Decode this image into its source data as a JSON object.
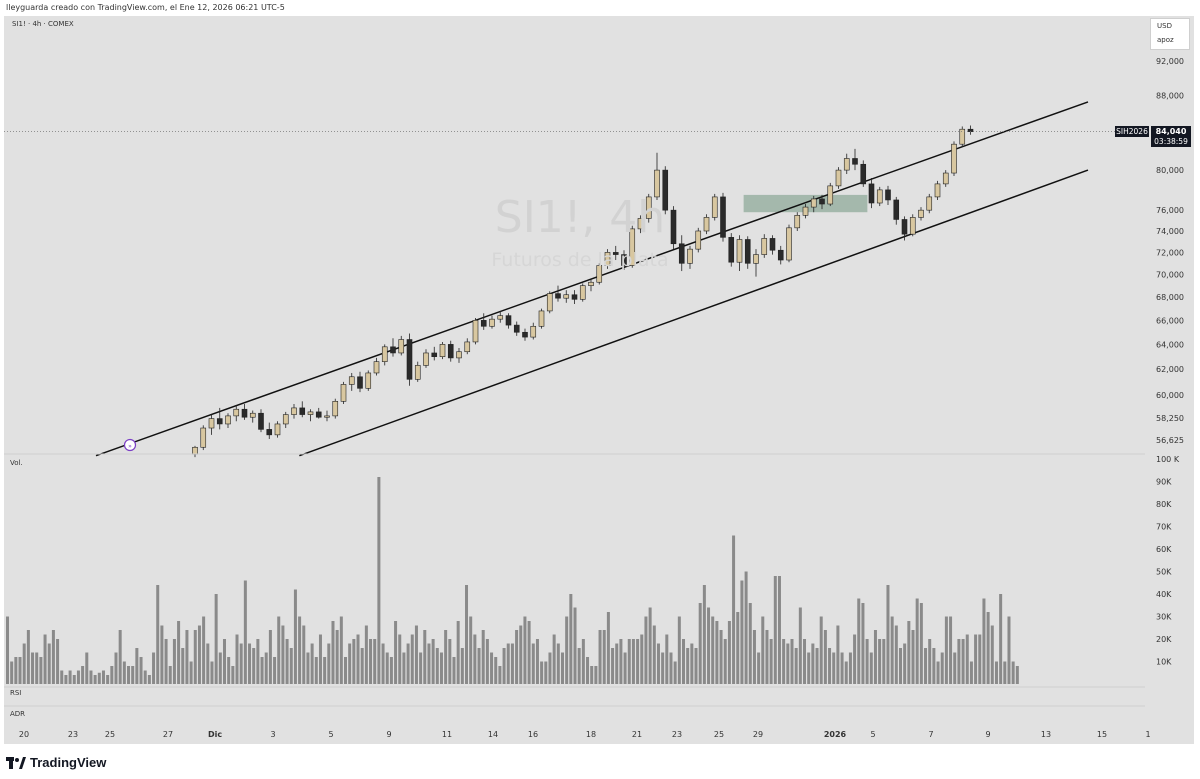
{
  "header": {
    "caption": "lleyguarda creado con TradingView.com, el Ene 12, 2026 06:21 UTC-5",
    "symbol_line": "SI1! · 4h · COMEX"
  },
  "watermark": {
    "title": "SI1!, 4h",
    "subtitle": "Futuros de la plata"
  },
  "currency_box": {
    "currency": "USD",
    "mode": "apoz"
  },
  "price_tag": {
    "symbol": "SIH2026",
    "price": "84,040",
    "countdown": "03:38:59"
  },
  "panes": {
    "volume_label": "Vol.",
    "rsi_label": "RSI",
    "adr_label": "ADR"
  },
  "footer": {
    "brand": "TradingView"
  },
  "colors": {
    "up": "#d8c7a0",
    "down": "#2a2a2a",
    "volume": "#8a8a8a",
    "zone": "#8fa99a",
    "channel": "#111111",
    "background": "#e1e1e1"
  },
  "chart_data": {
    "type": "candlestick",
    "price_axis": {
      "labels": [
        "92,000",
        "88,000",
        "84,000",
        "80,000",
        "76,000",
        "74,000",
        "72,000",
        "70,000",
        "68,000",
        "66,000",
        "64,000",
        "62,000",
        "60,000",
        "58,250",
        "56,625"
      ],
      "values": [
        92000,
        88000,
        84000,
        80000,
        76000,
        74000,
        72000,
        70000,
        68000,
        66000,
        64000,
        62000,
        60000,
        58250,
        56625
      ],
      "scale": "log"
    },
    "volume_axis": {
      "labels": [
        "100 K",
        "90K",
        "80K",
        "70K",
        "60K",
        "50K",
        "40K",
        "30K",
        "20K",
        "10K"
      ],
      "values": [
        100,
        90,
        80,
        70,
        60,
        50,
        40,
        30,
        20,
        10
      ]
    },
    "time_axis": {
      "labels": [
        "20",
        "23",
        "25",
        "27",
        "Dic",
        "3",
        "5",
        "9",
        "11",
        "14",
        "16",
        "18",
        "21",
        "23",
        "25",
        "29",
        "2026",
        "5",
        "7",
        "9",
        "13",
        "15",
        "1"
      ],
      "bold": [
        "Dic",
        "2026"
      ]
    },
    "current_price": 84040,
    "channel": {
      "upper": {
        "start": {
          "t": 0.0,
          "price": 55500
        },
        "end": {
          "t": 1.0,
          "price": 87300
        }
      },
      "lower": {
        "start": {
          "t": 0.205,
          "price": 55500
        },
        "end": {
          "t": 1.0,
          "price": 80000
        }
      }
    },
    "zone": {
      "t_start": 0.665,
      "t_end": 0.815,
      "price_low": 75800,
      "price_high": 77500
    },
    "candles": [
      {
        "t": 0.0,
        "o": 55600,
        "h": 56200,
        "l": 55400,
        "c": 56100
      },
      {
        "t": 0.01,
        "o": 56100,
        "h": 57700,
        "l": 55900,
        "c": 57500
      },
      {
        "t": 0.02,
        "o": 57500,
        "h": 58500,
        "l": 57000,
        "c": 58200
      },
      {
        "t": 0.03,
        "o": 58200,
        "h": 59000,
        "l": 57400,
        "c": 57800
      },
      {
        "t": 0.04,
        "o": 57800,
        "h": 58600,
        "l": 57500,
        "c": 58400
      },
      {
        "t": 0.05,
        "o": 58400,
        "h": 59200,
        "l": 58000,
        "c": 58900
      },
      {
        "t": 0.06,
        "o": 58900,
        "h": 59300,
        "l": 58100,
        "c": 58300
      },
      {
        "t": 0.07,
        "o": 58300,
        "h": 58800,
        "l": 57900,
        "c": 58600
      },
      {
        "t": 0.08,
        "o": 58600,
        "h": 58900,
        "l": 57200,
        "c": 57400
      },
      {
        "t": 0.09,
        "o": 57400,
        "h": 57900,
        "l": 56700,
        "c": 57000
      },
      {
        "t": 0.1,
        "o": 57000,
        "h": 58000,
        "l": 56800,
        "c": 57800
      },
      {
        "t": 0.11,
        "o": 57800,
        "h": 58700,
        "l": 57500,
        "c": 58500
      },
      {
        "t": 0.12,
        "o": 58500,
        "h": 59300,
        "l": 58200,
        "c": 59000
      },
      {
        "t": 0.13,
        "o": 59000,
        "h": 59500,
        "l": 58300,
        "c": 58500
      },
      {
        "t": 0.14,
        "o": 58500,
        "h": 58900,
        "l": 58000,
        "c": 58700
      },
      {
        "t": 0.15,
        "o": 58700,
        "h": 59000,
        "l": 58200,
        "c": 58300
      },
      {
        "t": 0.16,
        "o": 58300,
        "h": 58800,
        "l": 58000,
        "c": 58400
      },
      {
        "t": 0.17,
        "o": 58400,
        "h": 59700,
        "l": 58200,
        "c": 59500
      },
      {
        "t": 0.18,
        "o": 59500,
        "h": 61000,
        "l": 59300,
        "c": 60800
      },
      {
        "t": 0.19,
        "o": 60800,
        "h": 61700,
        "l": 60300,
        "c": 61400
      },
      {
        "t": 0.2,
        "o": 61400,
        "h": 61800,
        "l": 60200,
        "c": 60500
      },
      {
        "t": 0.21,
        "o": 60500,
        "h": 61900,
        "l": 60300,
        "c": 61700
      },
      {
        "t": 0.22,
        "o": 61700,
        "h": 62900,
        "l": 61500,
        "c": 62600
      },
      {
        "t": 0.23,
        "o": 62600,
        "h": 64000,
        "l": 62300,
        "c": 63800
      },
      {
        "t": 0.24,
        "o": 63800,
        "h": 64500,
        "l": 63000,
        "c": 63300
      },
      {
        "t": 0.25,
        "o": 63300,
        "h": 64700,
        "l": 63100,
        "c": 64400
      },
      {
        "t": 0.26,
        "o": 64400,
        "h": 64900,
        "l": 60700,
        "c": 61200
      },
      {
        "t": 0.27,
        "o": 61200,
        "h": 62600,
        "l": 61000,
        "c": 62300
      },
      {
        "t": 0.28,
        "o": 62300,
        "h": 63600,
        "l": 62100,
        "c": 63300
      },
      {
        "t": 0.29,
        "o": 63300,
        "h": 63800,
        "l": 62700,
        "c": 63000
      },
      {
        "t": 0.3,
        "o": 63000,
        "h": 64200,
        "l": 62800,
        "c": 64000
      },
      {
        "t": 0.31,
        "o": 64000,
        "h": 64300,
        "l": 62600,
        "c": 62900
      },
      {
        "t": 0.32,
        "o": 62900,
        "h": 63700,
        "l": 62500,
        "c": 63400
      },
      {
        "t": 0.33,
        "o": 63400,
        "h": 64500,
        "l": 63200,
        "c": 64200
      },
      {
        "t": 0.34,
        "o": 64200,
        "h": 66200,
        "l": 64000,
        "c": 66000
      },
      {
        "t": 0.35,
        "o": 66000,
        "h": 66600,
        "l": 65200,
        "c": 65500
      },
      {
        "t": 0.36,
        "o": 65500,
        "h": 66400,
        "l": 65300,
        "c": 66100
      },
      {
        "t": 0.37,
        "o": 66100,
        "h": 66800,
        "l": 65800,
        "c": 66400
      },
      {
        "t": 0.38,
        "o": 66400,
        "h": 66600,
        "l": 65300,
        "c": 65600
      },
      {
        "t": 0.39,
        "o": 65600,
        "h": 65900,
        "l": 64700,
        "c": 65000
      },
      {
        "t": 0.4,
        "o": 65000,
        "h": 65300,
        "l": 64300,
        "c": 64600
      },
      {
        "t": 0.41,
        "o": 64600,
        "h": 65800,
        "l": 64400,
        "c": 65500
      },
      {
        "t": 0.42,
        "o": 65500,
        "h": 67000,
        "l": 65300,
        "c": 66800
      },
      {
        "t": 0.43,
        "o": 66800,
        "h": 68500,
        "l": 66600,
        "c": 68300
      },
      {
        "t": 0.44,
        "o": 68300,
        "h": 69000,
        "l": 67600,
        "c": 67900
      },
      {
        "t": 0.45,
        "o": 67900,
        "h": 68600,
        "l": 67500,
        "c": 68200
      },
      {
        "t": 0.46,
        "o": 68200,
        "h": 68600,
        "l": 67400,
        "c": 67800
      },
      {
        "t": 0.47,
        "o": 67800,
        "h": 69200,
        "l": 67600,
        "c": 69000
      },
      {
        "t": 0.48,
        "o": 69000,
        "h": 69600,
        "l": 68500,
        "c": 69300
      },
      {
        "t": 0.49,
        "o": 69300,
        "h": 71000,
        "l": 69100,
        "c": 70800
      },
      {
        "t": 0.5,
        "o": 70800,
        "h": 72300,
        "l": 70500,
        "c": 72000
      },
      {
        "t": 0.51,
        "o": 72000,
        "h": 72600,
        "l": 71300,
        "c": 71800
      },
      {
        "t": 0.52,
        "o": 71800,
        "h": 72200,
        "l": 70400,
        "c": 70800
      },
      {
        "t": 0.53,
        "o": 70800,
        "h": 74500,
        "l": 70600,
        "c": 74200
      },
      {
        "t": 0.54,
        "o": 74200,
        "h": 75500,
        "l": 73800,
        "c": 75200
      },
      {
        "t": 0.55,
        "o": 75200,
        "h": 77600,
        "l": 74800,
        "c": 77300
      },
      {
        "t": 0.56,
        "o": 77300,
        "h": 81800,
        "l": 77000,
        "c": 80000
      },
      {
        "t": 0.57,
        "o": 80000,
        "h": 80400,
        "l": 75600,
        "c": 76000
      },
      {
        "t": 0.58,
        "o": 76000,
        "h": 76400,
        "l": 72300,
        "c": 72800
      },
      {
        "t": 0.59,
        "o": 72800,
        "h": 73600,
        "l": 70300,
        "c": 71000
      },
      {
        "t": 0.6,
        "o": 71000,
        "h": 72600,
        "l": 70500,
        "c": 72300
      },
      {
        "t": 0.61,
        "o": 72300,
        "h": 74300,
        "l": 72000,
        "c": 74000
      },
      {
        "t": 0.62,
        "o": 74000,
        "h": 75600,
        "l": 73700,
        "c": 75300
      },
      {
        "t": 0.63,
        "o": 75300,
        "h": 77600,
        "l": 75000,
        "c": 77300
      },
      {
        "t": 0.64,
        "o": 77300,
        "h": 77700,
        "l": 73000,
        "c": 73400
      },
      {
        "t": 0.65,
        "o": 73400,
        "h": 73800,
        "l": 70700,
        "c": 71100
      },
      {
        "t": 0.66,
        "o": 71100,
        "h": 73600,
        "l": 70300,
        "c": 73200
      },
      {
        "t": 0.67,
        "o": 73200,
        "h": 73500,
        "l": 70500,
        "c": 71000
      },
      {
        "t": 0.68,
        "o": 71000,
        "h": 72300,
        "l": 69800,
        "c": 71800
      },
      {
        "t": 0.69,
        "o": 71800,
        "h": 73700,
        "l": 71500,
        "c": 73300
      },
      {
        "t": 0.7,
        "o": 73300,
        "h": 73600,
        "l": 71800,
        "c": 72200
      },
      {
        "t": 0.71,
        "o": 72200,
        "h": 72600,
        "l": 70900,
        "c": 71300
      },
      {
        "t": 0.72,
        "o": 71300,
        "h": 74600,
        "l": 71100,
        "c": 74300
      },
      {
        "t": 0.73,
        "o": 74300,
        "h": 75800,
        "l": 74000,
        "c": 75500
      },
      {
        "t": 0.74,
        "o": 75500,
        "h": 76600,
        "l": 75200,
        "c": 76300
      },
      {
        "t": 0.75,
        "o": 76300,
        "h": 77400,
        "l": 75800,
        "c": 77100
      },
      {
        "t": 0.76,
        "o": 77100,
        "h": 77500,
        "l": 76100,
        "c": 76600
      },
      {
        "t": 0.77,
        "o": 76600,
        "h": 78700,
        "l": 76400,
        "c": 78400
      },
      {
        "t": 0.78,
        "o": 78400,
        "h": 80300,
        "l": 78100,
        "c": 80000
      },
      {
        "t": 0.79,
        "o": 80000,
        "h": 81700,
        "l": 79600,
        "c": 81200
      },
      {
        "t": 0.8,
        "o": 81200,
        "h": 82200,
        "l": 80000,
        "c": 80600
      },
      {
        "t": 0.81,
        "o": 80600,
        "h": 81000,
        "l": 78300,
        "c": 78600
      },
      {
        "t": 0.82,
        "o": 78600,
        "h": 79200,
        "l": 76200,
        "c": 76700
      },
      {
        "t": 0.83,
        "o": 76700,
        "h": 78300,
        "l": 76400,
        "c": 78000
      },
      {
        "t": 0.84,
        "o": 78000,
        "h": 78400,
        "l": 76500,
        "c": 77000
      },
      {
        "t": 0.85,
        "o": 77000,
        "h": 77300,
        "l": 74600,
        "c": 75100
      },
      {
        "t": 0.86,
        "o": 75100,
        "h": 75400,
        "l": 73100,
        "c": 73700
      },
      {
        "t": 0.87,
        "o": 73700,
        "h": 75600,
        "l": 73500,
        "c": 75300
      },
      {
        "t": 0.88,
        "o": 75300,
        "h": 76300,
        "l": 75000,
        "c": 76000
      },
      {
        "t": 0.89,
        "o": 76000,
        "h": 77600,
        "l": 75700,
        "c": 77300
      },
      {
        "t": 0.9,
        "o": 77300,
        "h": 78900,
        "l": 77000,
        "c": 78600
      },
      {
        "t": 0.91,
        "o": 78600,
        "h": 80000,
        "l": 78300,
        "c": 79700
      },
      {
        "t": 0.92,
        "o": 79700,
        "h": 83000,
        "l": 79400,
        "c": 82700
      },
      {
        "t": 0.93,
        "o": 82700,
        "h": 84600,
        "l": 82400,
        "c": 84300
      },
      {
        "t": 0.94,
        "o": 84300,
        "h": 84700,
        "l": 83700,
        "c": 84040
      }
    ],
    "volume": [
      30,
      10,
      12,
      12,
      18,
      24,
      14,
      14,
      12,
      22,
      18,
      24,
      20,
      6,
      4,
      6,
      4,
      6,
      8,
      14,
      6,
      4,
      5,
      6,
      4,
      8,
      14,
      24,
      10,
      8,
      8,
      16,
      12,
      6,
      4,
      14,
      44,
      26,
      20,
      8,
      20,
      28,
      16,
      24,
      10,
      24,
      26,
      30,
      18,
      10,
      40,
      14,
      20,
      12,
      8,
      22,
      18,
      46,
      18,
      16,
      20,
      12,
      14,
      24,
      12,
      30,
      26,
      20,
      16,
      42,
      30,
      26,
      14,
      18,
      12,
      22,
      12,
      18,
      28,
      24,
      30,
      12,
      18,
      20,
      22,
      16,
      26,
      20,
      20,
      92,
      18,
      14,
      12,
      28,
      22,
      14,
      18,
      22,
      26,
      14,
      24,
      18,
      20,
      16,
      14,
      24,
      20,
      12,
      28,
      16,
      44,
      30,
      22,
      16,
      24,
      20,
      14,
      12,
      8,
      16,
      18,
      18,
      24,
      26,
      30,
      28,
      18,
      20,
      10,
      10,
      14,
      22,
      18,
      14,
      30,
      40,
      34,
      16,
      20,
      12,
      8,
      8,
      24,
      24,
      32,
      16,
      18,
      20,
      14,
      20,
      20,
      20,
      22,
      30,
      34,
      26,
      18,
      14,
      22,
      14,
      10,
      30,
      20,
      16,
      18,
      16,
      36,
      44,
      34,
      30,
      28,
      24,
      20,
      28,
      66,
      32,
      46,
      50,
      36,
      24,
      14,
      30,
      24,
      20,
      48,
      48,
      20,
      18,
      20,
      16,
      34,
      20,
      14,
      18,
      16,
      30,
      24,
      16,
      14,
      26,
      14,
      10,
      14,
      22,
      38,
      36,
      20,
      14,
      24,
      20,
      20,
      44,
      30,
      26,
      16,
      18,
      28,
      24,
      38,
      36,
      16,
      20,
      16,
      10,
      14,
      30,
      30,
      14,
      20,
      20,
      22,
      10,
      22,
      22,
      38,
      32,
      26,
      10,
      40,
      10,
      30,
      10,
      8
    ]
  }
}
